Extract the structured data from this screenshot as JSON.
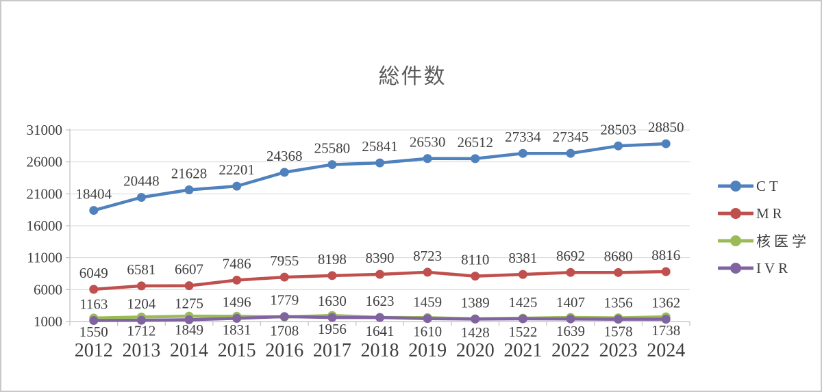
{
  "chart_data": {
    "type": "line",
    "title": "総件数",
    "categories": [
      "2012",
      "2013",
      "2014",
      "2015",
      "2016",
      "2017",
      "2018",
      "2019",
      "2020",
      "2021",
      "2022",
      "2023",
      "2024"
    ],
    "y_axis": {
      "min": 1000,
      "max": 31000,
      "step": 5000,
      "tick_labels": [
        "1000",
        "6000",
        "11000",
        "16000",
        "21000",
        "26000",
        "31000"
      ]
    },
    "grid": true,
    "legend_position": "right",
    "series": [
      {
        "name": "CT",
        "color": "#4F81BD",
        "label_position": "above",
        "values": [
          18404,
          20448,
          21628,
          22201,
          24368,
          25580,
          25841,
          26530,
          26512,
          27334,
          27345,
          28503,
          28850
        ]
      },
      {
        "name": "MR",
        "color": "#C0504D",
        "label_position": "above",
        "values": [
          6049,
          6581,
          6607,
          7486,
          7955,
          8198,
          8390,
          8723,
          8110,
          8381,
          8692,
          8680,
          8816
        ]
      },
      {
        "name": "核医学",
        "color": "#9BBB59",
        "label_position": "below",
        "values": [
          1550,
          1712,
          1849,
          1831,
          1708,
          1956,
          1641,
          1610,
          1428,
          1522,
          1639,
          1578,
          1738
        ]
      },
      {
        "name": "IVR",
        "color": "#8064A2",
        "label_position": "above",
        "values": [
          1163,
          1204,
          1275,
          1496,
          1779,
          1630,
          1623,
          1459,
          1389,
          1425,
          1407,
          1356,
          1362
        ]
      }
    ],
    "style_colors": {
      "gridline": "#d6d6d6",
      "axis": "#bfbfbf",
      "label_text": "#3f3f3f",
      "title_text": "#595959"
    }
  }
}
